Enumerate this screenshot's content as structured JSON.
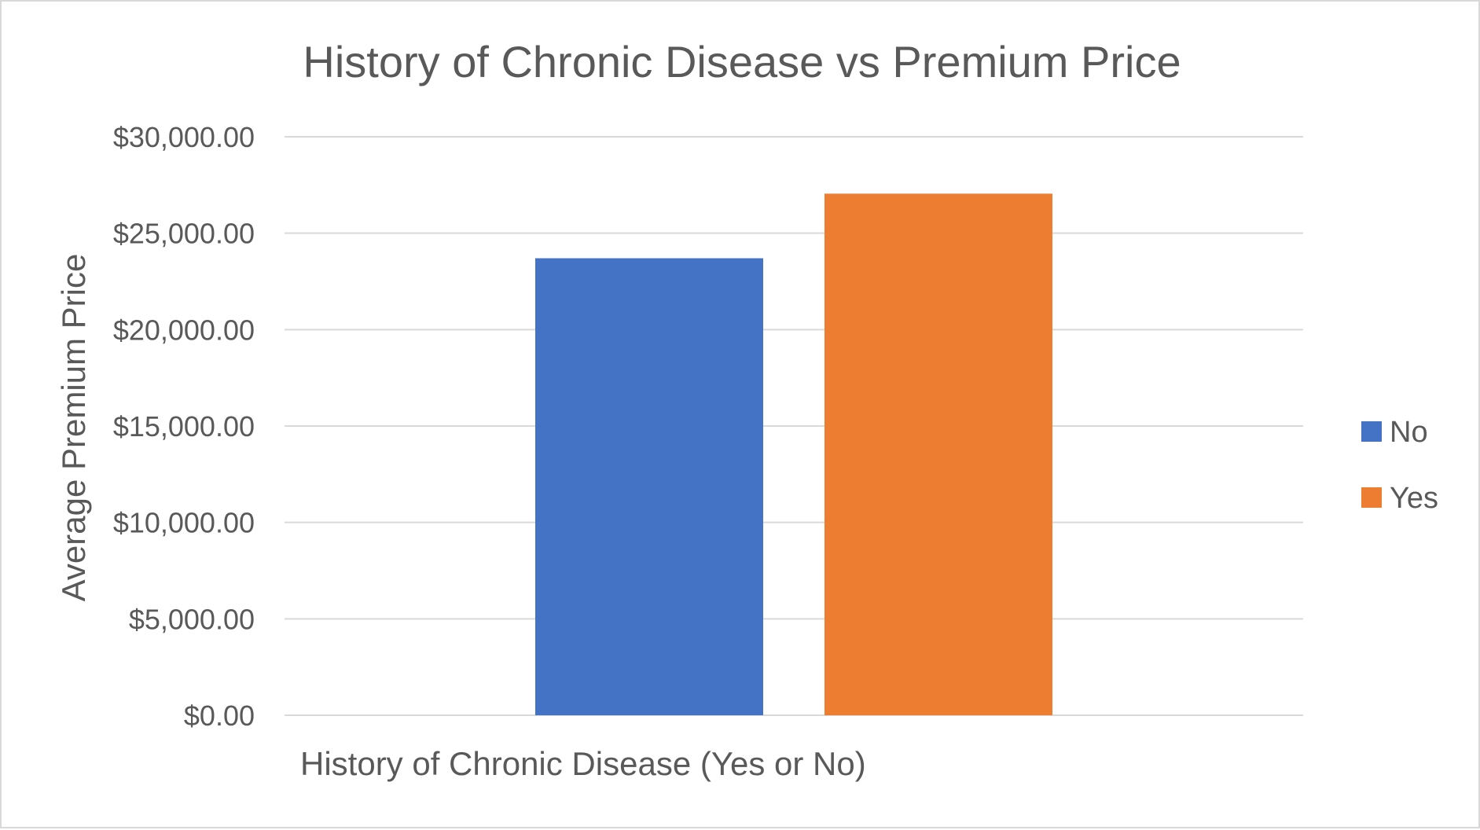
{
  "chart_data": {
    "type": "bar",
    "title": "History of Chronic Disease vs Premium Price",
    "xlabel": "History of Chronic Disease (Yes or No)",
    "ylabel": "Average Premium Price",
    "ylim": [
      0,
      30000
    ],
    "yticks": [
      0,
      5000,
      10000,
      15000,
      20000,
      25000,
      30000
    ],
    "ytick_labels": [
      "$0.00",
      "$5,000.00",
      "$10,000.00",
      "$15,000.00",
      "$20,000.00",
      "$25,000.00",
      "$30,000.00"
    ],
    "grid": true,
    "legend_position": "right",
    "series": [
      {
        "name": "No",
        "values": [
          23700
        ],
        "color": "#4472C4"
      },
      {
        "name": "Yes",
        "values": [
          27050
        ],
        "color": "#ED7D31"
      }
    ]
  }
}
